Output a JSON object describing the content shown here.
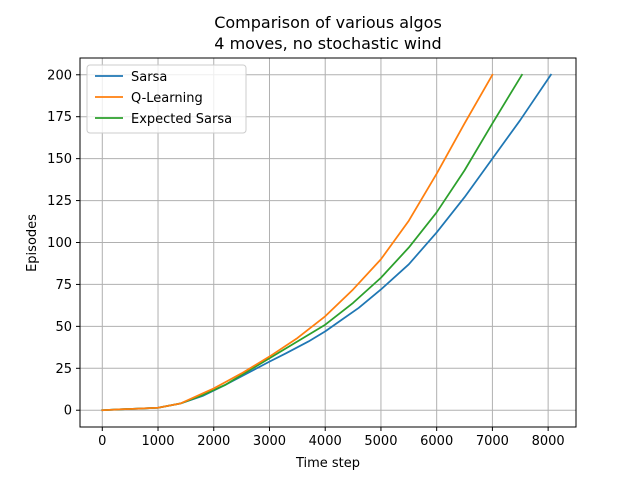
{
  "chart_data": {
    "type": "line",
    "title": "Comparison of various algos",
    "subtitle": "4 moves, no stochastic wind",
    "xlabel": "Time step",
    "ylabel": "Episodes",
    "xlim": [
      -400,
      8500
    ],
    "ylim": [
      -10,
      210
    ],
    "xticks": [
      0,
      1000,
      2000,
      3000,
      4000,
      5000,
      6000,
      7000,
      8000
    ],
    "yticks": [
      0,
      25,
      50,
      75,
      100,
      125,
      150,
      175,
      200
    ],
    "grid": true,
    "legend_position": "top-left",
    "series": [
      {
        "name": "Sarsa",
        "color": "#1f77b4",
        "x": [
          0,
          300,
          700,
          1000,
          1400,
          1800,
          2200,
          2600,
          3000,
          3300,
          3700,
          4000,
          4300,
          4600,
          5000,
          5500,
          6000,
          6500,
          7000,
          7500,
          8050
        ],
        "y": [
          0,
          0.5,
          1,
          1.5,
          4,
          8.5,
          15,
          22,
          29,
          34,
          41,
          47,
          54,
          61,
          72,
          87,
          106,
          127,
          150,
          173,
          200
        ]
      },
      {
        "name": "Q-Learning",
        "color": "#ff7f0e",
        "x": [
          0,
          300,
          700,
          1000,
          1400,
          1800,
          2000,
          2500,
          3000,
          3500,
          4000,
          4500,
          5000,
          5500,
          6000,
          6500,
          7000
        ],
        "y": [
          0,
          0.5,
          1,
          1.5,
          4,
          10,
          13,
          22,
          32,
          43,
          56,
          72,
          90,
          113,
          141,
          171,
          200
        ]
      },
      {
        "name": "Expected Sarsa",
        "color": "#2ca02c",
        "x": [
          0,
          300,
          700,
          1000,
          1400,
          1800,
          2200,
          2600,
          3000,
          3500,
          4000,
          4500,
          5000,
          5500,
          6000,
          6500,
          7000,
          7530
        ],
        "y": [
          0,
          0.5,
          1,
          1.5,
          4,
          9,
          15,
          23,
          31,
          41,
          51,
          64,
          79,
          97,
          118,
          143,
          171,
          200
        ]
      }
    ]
  }
}
